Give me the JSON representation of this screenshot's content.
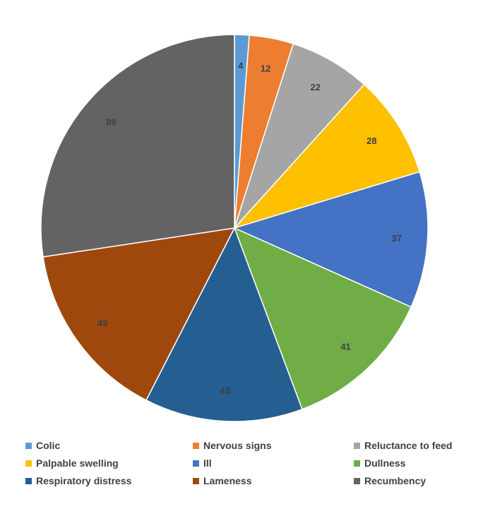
{
  "chart_data": {
    "type": "pie",
    "title": "",
    "legend_position": "bottom",
    "categories": [
      "Colic",
      "Nervous signs",
      "Reluctance to feed",
      "Palpable swelling",
      "Ill",
      "Dullness",
      "Respiratory distress",
      "Lameness",
      "Recumbency"
    ],
    "values": [
      4,
      12,
      22,
      28,
      37,
      41,
      43,
      49,
      89
    ],
    "colors": [
      "#5B9BD5",
      "#ED7D31",
      "#A5A5A5",
      "#FFC000",
      "#4472C4",
      "#70AD47",
      "#255E91",
      "#9E480E",
      "#636363"
    ],
    "data_labels": [
      "4",
      "12",
      "22",
      "28",
      "37",
      "41",
      "43",
      "49",
      "89"
    ]
  }
}
